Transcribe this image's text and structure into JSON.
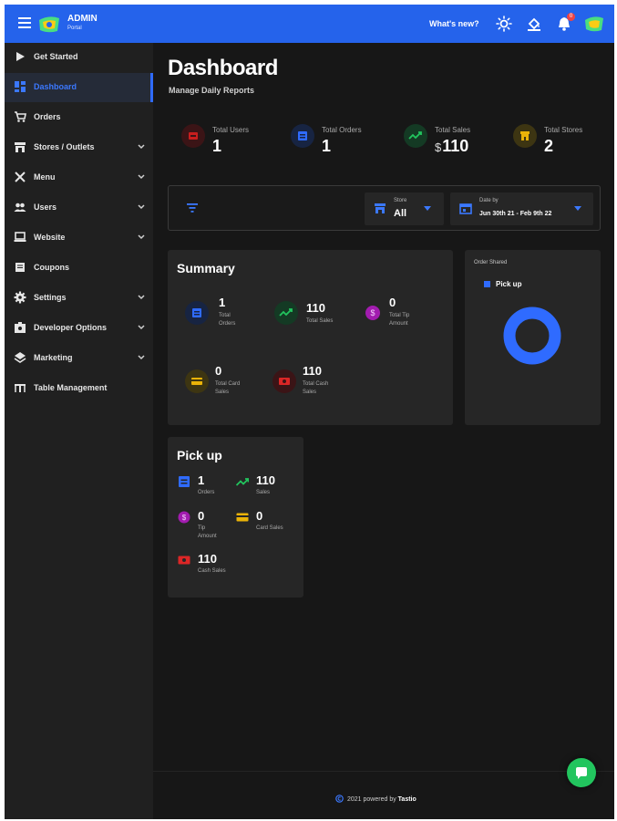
{
  "header": {
    "brand_title": "ADMIN",
    "brand_subtitle": "Portal",
    "whats_new": "What's new?",
    "notification_count": "0",
    "icons": [
      "menu-icon",
      "sun-icon",
      "paint-bucket-icon",
      "bell-icon",
      "avatar"
    ]
  },
  "sidebar": {
    "items": [
      {
        "label": "Get Started",
        "icon": "play-icon",
        "expandable": false,
        "active": false
      },
      {
        "label": "Dashboard",
        "icon": "dashboard-icon",
        "expandable": false,
        "active": true
      },
      {
        "label": "Orders",
        "icon": "cart-icon",
        "expandable": false,
        "active": false
      },
      {
        "label": "Stores / Outlets",
        "icon": "store-icon",
        "expandable": true,
        "active": false
      },
      {
        "label": "Menu",
        "icon": "utensils-icon",
        "expandable": true,
        "active": false
      },
      {
        "label": "Users",
        "icon": "users-icon",
        "expandable": true,
        "active": false
      },
      {
        "label": "Website",
        "icon": "laptop-icon",
        "expandable": true,
        "active": false
      },
      {
        "label": "Coupons",
        "icon": "coupon-icon",
        "expandable": false,
        "active": false
      },
      {
        "label": "Settings",
        "icon": "gear-icon",
        "expandable": true,
        "active": false
      },
      {
        "label": "Developer Options",
        "icon": "developer-icon",
        "expandable": true,
        "active": false
      },
      {
        "label": "Marketing",
        "icon": "layers-icon",
        "expandable": true,
        "active": false
      },
      {
        "label": "Table Management",
        "icon": "table-icon",
        "expandable": false,
        "active": false
      }
    ]
  },
  "main": {
    "title": "Dashboard",
    "subtitle": "Manage Daily Reports",
    "stats": [
      {
        "label": "Total Users",
        "value": "1",
        "currency": "",
        "icon": "users-icon",
        "color": "#c81e1e",
        "bg": "#3b1416"
      },
      {
        "label": "Total Orders",
        "value": "1",
        "currency": "",
        "icon": "orders-icon",
        "color": "#2f6bff",
        "bg": "#172442"
      },
      {
        "label": "Total Sales",
        "value": "110",
        "currency": "$",
        "icon": "trending-up-icon",
        "color": "#22c55e",
        "bg": "#143a24"
      },
      {
        "label": "Total Stores",
        "value": "2",
        "currency": "",
        "icon": "store-icon",
        "color": "#eab308",
        "bg": "#3d3512"
      }
    ],
    "filters": {
      "store": {
        "label": "Store",
        "value": "All"
      },
      "date": {
        "label": "Date by",
        "value": "Jun 30th 21 - Feb 9th 22"
      }
    },
    "summary": {
      "title": "Summary",
      "items": [
        {
          "value": "1",
          "label": "Total Orders",
          "icon": "orders-icon"
        },
        {
          "value": "110",
          "label": "Total Sales",
          "icon": "trending-up-icon"
        },
        {
          "value": "0",
          "label": "Total Tip Amount",
          "icon": "dollar-icon"
        },
        {
          "value": "0",
          "label": "Total Card Sales",
          "icon": "card-icon"
        },
        {
          "value": "110",
          "label": "Total Cash Sales",
          "icon": "cash-icon"
        }
      ]
    },
    "order_shared": {
      "title": "Order Shared",
      "legend": "Pick up",
      "legend_color": "#2f6bff"
    },
    "pickup": {
      "title": "Pick up",
      "items": [
        {
          "value": "1",
          "label": "Orders",
          "icon": "orders-icon"
        },
        {
          "value": "110",
          "label": "Sales",
          "icon": "trending-up-icon"
        },
        {
          "value": "0",
          "label": "Tip Amount",
          "icon": "dollar-icon"
        },
        {
          "value": "0",
          "label": "Card Sales",
          "icon": "card-icon"
        },
        {
          "value": "110",
          "label": "Cash Sales",
          "icon": "cash-icon"
        }
      ]
    }
  },
  "footer": {
    "text": "2021 powered by",
    "brand": "Tastio"
  },
  "colors": {
    "accent": "#2563eb",
    "background": "#171717",
    "sidebar": "#202020",
    "card": "#262626"
  }
}
